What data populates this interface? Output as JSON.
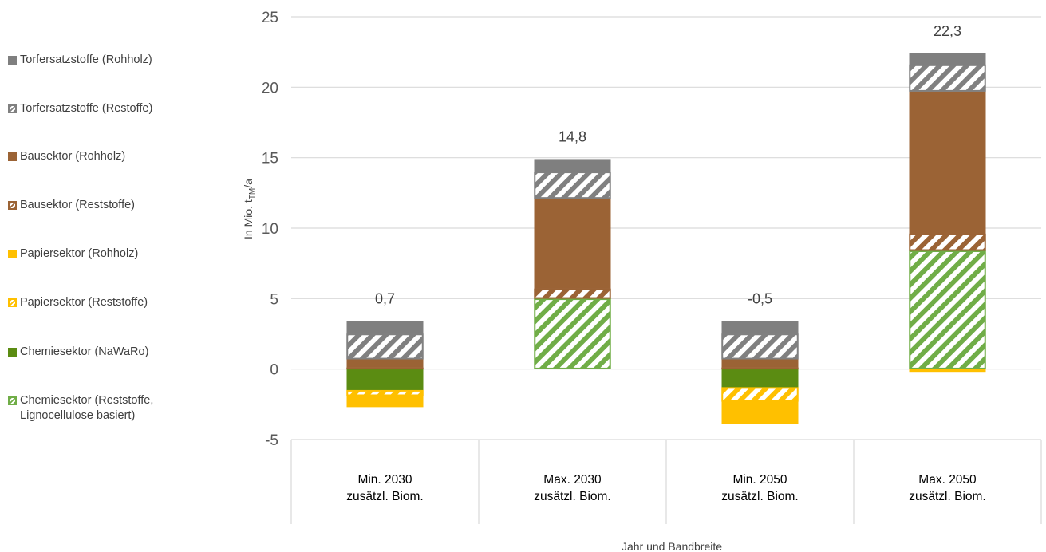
{
  "chart_data": {
    "type": "bar",
    "stacked": true,
    "title": "",
    "xlabel": "Jahr und Bandbreite",
    "ylabel": "In Mio. t",
    "ylabel_sub": "TM",
    "ylabel_suffix": "/a",
    "ylim": [
      -5,
      25
    ],
    "yticks": [
      -5,
      0,
      5,
      10,
      15,
      20,
      25
    ],
    "grid": true,
    "legend_position": "left",
    "categories": [
      [
        "Min. 2030",
        "zusätzl. Biom."
      ],
      [
        "Max. 2030",
        "zusätzl. Biom."
      ],
      [
        "Min. 2050",
        "zusätzl. Biom."
      ],
      [
        "Max. 2050",
        "zusätzl. Biom."
      ]
    ],
    "totals": [
      "0,7",
      "14,8",
      "-0,5",
      "22,3"
    ],
    "series": [
      {
        "name": "Chemiesektor (Reststoffe,\nLignocellulose basiert)",
        "color": "#70AD47",
        "pattern": "hatch",
        "values": [
          0,
          5.0,
          0,
          8.4
        ]
      },
      {
        "name": "Chemiesektor (NaWaRo)",
        "color": "#5B8C12",
        "pattern": "solid",
        "values": [
          -1.5,
          0,
          -1.3,
          0
        ]
      },
      {
        "name": "Papiersektor (Reststoffe)",
        "color": "#FFC000",
        "pattern": "hatch",
        "values": [
          -0.4,
          0,
          -1.0,
          0
        ]
      },
      {
        "name": "Papiersektor (Rohholz)",
        "color": "#FFC000",
        "pattern": "solid",
        "values": [
          -0.8,
          0,
          -1.6,
          -0.2
        ]
      },
      {
        "name": "Bausektor (Reststoffe)",
        "color": "#9B6335",
        "pattern": "hatch",
        "values": [
          0.1,
          0.7,
          0.1,
          1.2
        ]
      },
      {
        "name": "Bausektor (Rohholz)",
        "color": "#9B6335",
        "pattern": "solid",
        "values": [
          0.6,
          6.4,
          0.6,
          10.1
        ]
      },
      {
        "name": "Torfersatzstoffe (Restoffe)",
        "color": "#808080",
        "pattern": "hatch",
        "values": [
          1.8,
          1.9,
          1.8,
          1.9
        ]
      },
      {
        "name": "Torfersatzstoffe (Rohholz)",
        "color": "#7F7F7F",
        "pattern": "solid",
        "values": [
          0.9,
          0.9,
          0.9,
          0.8
        ]
      }
    ],
    "legend_order": [
      7,
      6,
      5,
      4,
      3,
      2,
      1,
      0
    ]
  }
}
